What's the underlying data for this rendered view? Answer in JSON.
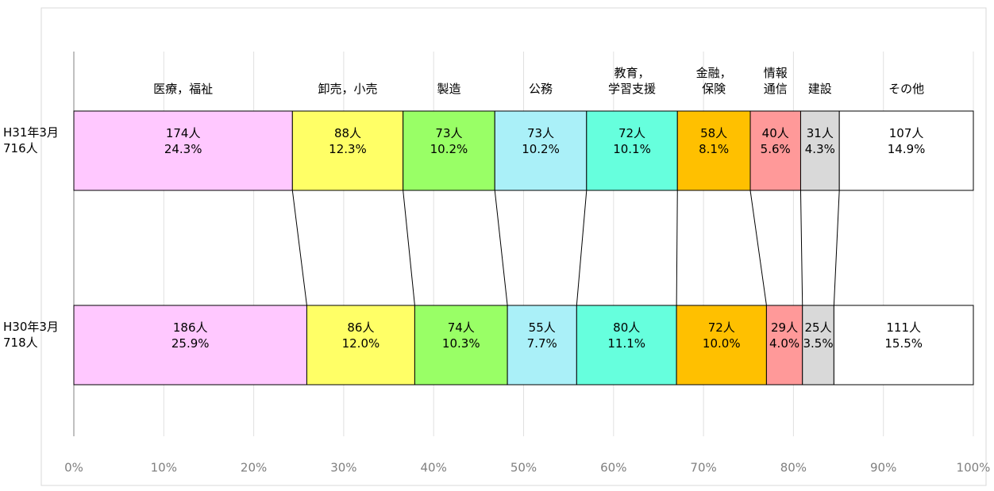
{
  "chart_data": {
    "type": "stacked_bar_100",
    "categories": [
      "H31年3月\n716人",
      "H30年3月\n718人"
    ],
    "xlim": [
      0,
      100
    ],
    "xticks": [
      {
        "value": 0,
        "label": "0%"
      },
      {
        "value": 10,
        "label": "10%"
      },
      {
        "value": 20,
        "label": "20%"
      },
      {
        "value": 30,
        "label": "30%"
      },
      {
        "value": 40,
        "label": "40%"
      },
      {
        "value": 50,
        "label": "50%"
      },
      {
        "value": 60,
        "label": "60%"
      },
      {
        "value": 70,
        "label": "70%"
      },
      {
        "value": 80,
        "label": "80%"
      },
      {
        "value": 90,
        "label": "90%"
      },
      {
        "value": 100,
        "label": "100%"
      }
    ],
    "grid": true,
    "series": [
      {
        "name": "医療，福祉",
        "color": "#ffc8ff",
        "values": [
          24.3,
          25.9
        ],
        "value_labels": [
          "24.3%",
          "25.9%"
        ],
        "counts": [
          174,
          186
        ],
        "count_labels": [
          "174人",
          "186人"
        ]
      },
      {
        "name": "卸売，小売",
        "color": "#ffff66",
        "values": [
          12.3,
          12.0
        ],
        "value_labels": [
          "12.3%",
          "12.0%"
        ],
        "counts": [
          88,
          86
        ],
        "count_labels": [
          "88人",
          "86人"
        ]
      },
      {
        "name": "製造",
        "color": "#99ff66",
        "values": [
          10.2,
          10.3
        ],
        "value_labels": [
          "10.2%",
          "10.3%"
        ],
        "counts": [
          73,
          74
        ],
        "count_labels": [
          "73人",
          "74人"
        ]
      },
      {
        "name": "公務",
        "color": "#aaf0f8",
        "values": [
          10.2,
          7.7
        ],
        "value_labels": [
          "10.2%",
          "7.7%"
        ],
        "counts": [
          73,
          55
        ],
        "count_labels": [
          "73人",
          "55人"
        ]
      },
      {
        "name": "教育，\n学習支援",
        "color": "#66ffdd",
        "values": [
          10.1,
          11.1
        ],
        "value_labels": [
          "10.1%",
          "11.1%"
        ],
        "counts": [
          72,
          80
        ],
        "count_labels": [
          "72人",
          "80人"
        ]
      },
      {
        "name": "金融，\n保険",
        "color": "#ffc000",
        "values": [
          8.1,
          10.0
        ],
        "value_labels": [
          "8.1%",
          "10.0%"
        ],
        "counts": [
          58,
          72
        ],
        "count_labels": [
          "58人",
          "72人"
        ]
      },
      {
        "name": "情報\n通信",
        "color": "#ff9999",
        "values": [
          5.6,
          4.0
        ],
        "value_labels": [
          "5.6%",
          "4.0%"
        ],
        "counts": [
          40,
          29
        ],
        "count_labels": [
          "40人",
          "29人"
        ]
      },
      {
        "name": "建設",
        "color": "#d9d9d9",
        "values": [
          4.3,
          3.5
        ],
        "value_labels": [
          "4.3%",
          "3.5%"
        ],
        "counts": [
          31,
          25
        ],
        "count_labels": [
          "31人",
          "25人"
        ]
      },
      {
        "name": "その他",
        "color": "#ffffff",
        "values": [
          14.9,
          15.5
        ],
        "value_labels": [
          "14.9%",
          "15.5%"
        ],
        "counts": [
          107,
          111
        ],
        "count_labels": [
          "107人",
          "111人"
        ]
      }
    ]
  }
}
